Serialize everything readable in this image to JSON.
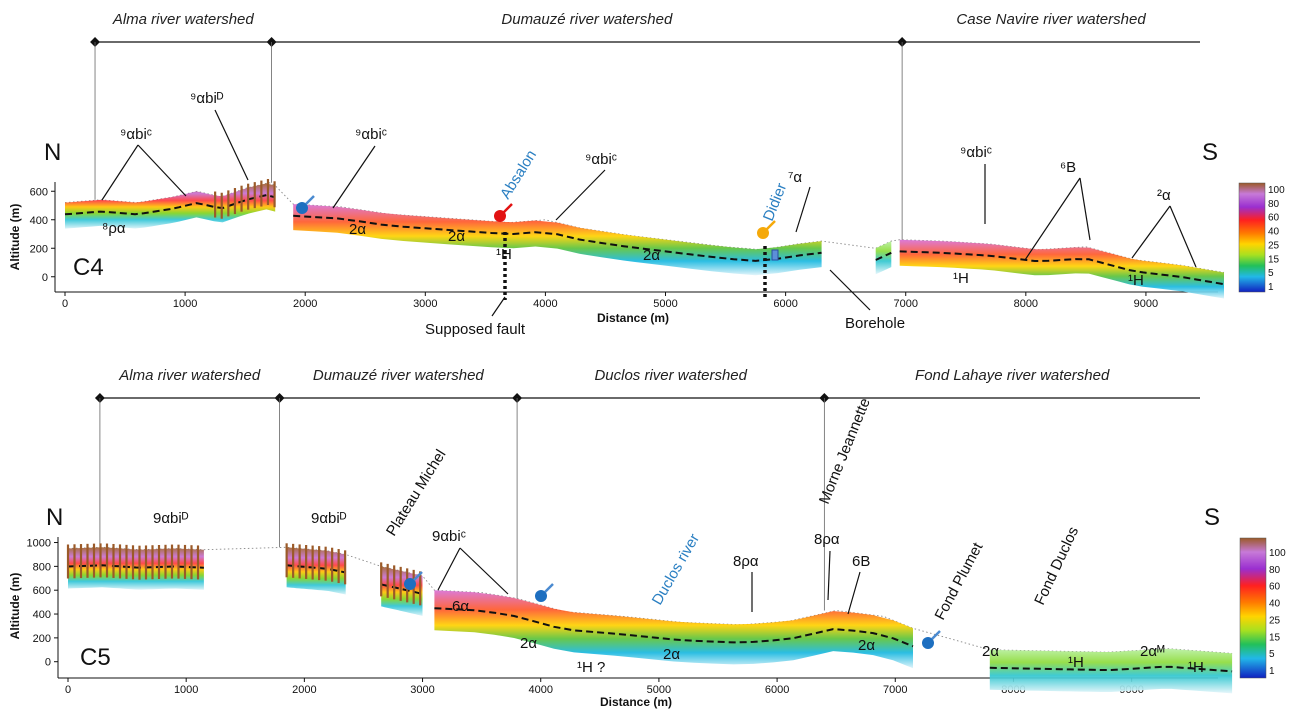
{
  "chart_data": [
    {
      "type": "profile",
      "profile": "C4",
      "north": "N",
      "south": "S",
      "xlabel": "Distance (m)",
      "ylabel": "Altitude (m)",
      "xlim": [
        0,
        9700
      ],
      "ylim": [
        -100,
        700
      ],
      "xticks": [
        0,
        1000,
        2000,
        3000,
        4000,
        5000,
        6000,
        7000,
        8000,
        9000
      ],
      "yticks": [
        0,
        200,
        400,
        600
      ],
      "watersheds": [
        {
          "name": "Alma river watershed",
          "x_start": 250,
          "x_end": 1720
        },
        {
          "name": "Dumauzé river watershed",
          "x_start": 1720,
          "x_end": 6970
        },
        {
          "name": "Case Navire river watershed",
          "x_start": 6970,
          "x_end": 9700
        }
      ],
      "segments": [
        [
          0,
          1750
        ],
        [
          1900,
          6300
        ],
        [
          6750,
          6880
        ],
        [
          6950,
          9650
        ]
      ],
      "surface": [
        [
          0,
          520
        ],
        [
          300,
          540
        ],
        [
          600,
          520
        ],
        [
          900,
          560
        ],
        [
          1100,
          600
        ],
        [
          1300,
          560
        ],
        [
          1500,
          620
        ],
        [
          1700,
          660
        ],
        [
          1750,
          640
        ],
        [
          1900,
          510
        ],
        [
          2300,
          490
        ],
        [
          2700,
          440
        ],
        [
          3200,
          410
        ],
        [
          3700,
          380
        ],
        [
          4000,
          400
        ],
        [
          4300,
          340
        ],
        [
          4700,
          290
        ],
        [
          5100,
          250
        ],
        [
          5500,
          210
        ],
        [
          5800,
          190
        ],
        [
          6100,
          230
        ],
        [
          6300,
          250
        ],
        [
          6750,
          200
        ],
        [
          6880,
          250
        ],
        [
          6950,
          260
        ],
        [
          7300,
          250
        ],
        [
          7700,
          230
        ],
        [
          8100,
          190
        ],
        [
          8500,
          210
        ],
        [
          8900,
          120
        ],
        [
          9300,
          80
        ],
        [
          9650,
          30
        ]
      ],
      "labels": [
        "⁹αbiᶜ",
        "⁹αbiᴰ",
        "⁹αbiᶜ",
        "⁹αbiᶜ",
        "⁷α",
        "⁹αbiᶜ",
        "⁶B",
        "²α",
        "⁸ρα",
        "2α",
        "2α",
        "2α",
        "¹H",
        "¹H",
        "¹H"
      ],
      "blue_labels": [
        "Absalon",
        "Didier"
      ],
      "annotations": [
        "Supposed fault",
        "Borehole"
      ],
      "colorbar_ticks": [
        100,
        80,
        60,
        40,
        25,
        15,
        5,
        1
      ]
    },
    {
      "type": "profile",
      "profile": "C5",
      "north": "N",
      "south": "S",
      "xlabel": "Distance (m)",
      "ylabel": "Altitude (m)",
      "xlim": [
        0,
        9900
      ],
      "ylim": [
        -120,
        1080
      ],
      "xticks": [
        0,
        1000,
        2000,
        3000,
        4000,
        5000,
        6000,
        7000,
        8000,
        9000
      ],
      "yticks": [
        0,
        200,
        400,
        600,
        800,
        1000
      ],
      "watersheds": [
        {
          "name": "Alma river watershed",
          "x_start": 270,
          "x_end": 1790
        },
        {
          "name": "Dumauzé river watershed",
          "x_start": 1790,
          "x_end": 3800
        },
        {
          "name": "Duclos river watershed",
          "x_start": 3800,
          "x_end": 6400
        },
        {
          "name": "Fond Lahaye river watershed",
          "x_start": 6400,
          "x_end": 9900
        }
      ],
      "segments": [
        [
          0,
          1150
        ],
        [
          1850,
          2350
        ],
        [
          2650,
          3000
        ],
        [
          3100,
          7150
        ],
        [
          7800,
          9850
        ]
      ],
      "surface": [
        [
          0,
          950
        ],
        [
          300,
          960
        ],
        [
          600,
          940
        ],
        [
          900,
          950
        ],
        [
          1150,
          940
        ],
        [
          1850,
          960
        ],
        [
          2200,
          930
        ],
        [
          2350,
          900
        ],
        [
          2650,
          800
        ],
        [
          3000,
          720
        ],
        [
          3100,
          600
        ],
        [
          3500,
          580
        ],
        [
          3800,
          530
        ],
        [
          4200,
          420
        ],
        [
          4700,
          380
        ],
        [
          5200,
          330
        ],
        [
          5700,
          310
        ],
        [
          6100,
          340
        ],
        [
          6500,
          430
        ],
        [
          6900,
          380
        ],
        [
          7150,
          280
        ],
        [
          7800,
          100
        ],
        [
          8300,
          90
        ],
        [
          8800,
          80
        ],
        [
          9300,
          110
        ],
        [
          9850,
          70
        ]
      ],
      "labels": [
        "9αbiᴰ",
        "9αbiᴰ",
        "9αbiᶜ",
        "8ρα",
        "8ρα",
        "6B",
        "6α",
        "2α",
        "2α",
        "2α",
        "2α",
        "2αᴹ",
        "¹H ?",
        "¹H",
        "¹H"
      ],
      "blue_labels": [
        "Duclos river"
      ],
      "rotated_labels": [
        "Plateau Michel",
        "Morne Jeannette",
        "Fond Plumet",
        "Fond Duclos"
      ],
      "colorbar_ticks": [
        100,
        80,
        60,
        40,
        25,
        15,
        5,
        1
      ]
    }
  ]
}
